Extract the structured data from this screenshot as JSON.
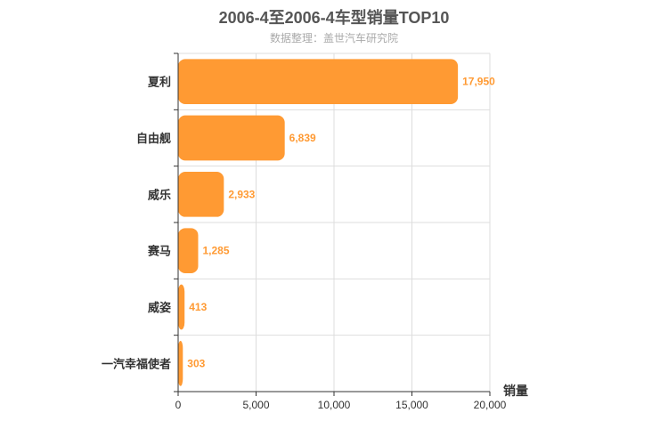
{
  "chart_data": {
    "type": "bar",
    "orientation": "horizontal",
    "title": "2006-4至2006-4车型销量TOP10",
    "subtitle": "数据整理：盖世汽车研究院",
    "xlabel": "销量",
    "categories": [
      "夏利",
      "自由舰",
      "威乐",
      "赛马",
      "威姿",
      "一汽幸福使者"
    ],
    "values": [
      17950,
      6839,
      2933,
      1285,
      413,
      303
    ],
    "value_labels": [
      "17,950",
      "6,839",
      "2,933",
      "1,285",
      "413",
      "303"
    ],
    "xlim": [
      0,
      20000
    ],
    "xticks": [
      0,
      5000,
      10000,
      15000,
      20000
    ],
    "xtick_labels": [
      "0",
      "5,000",
      "10,000",
      "15,000",
      "20,000"
    ],
    "grid": true,
    "bar_color": "#ff9a33"
  }
}
